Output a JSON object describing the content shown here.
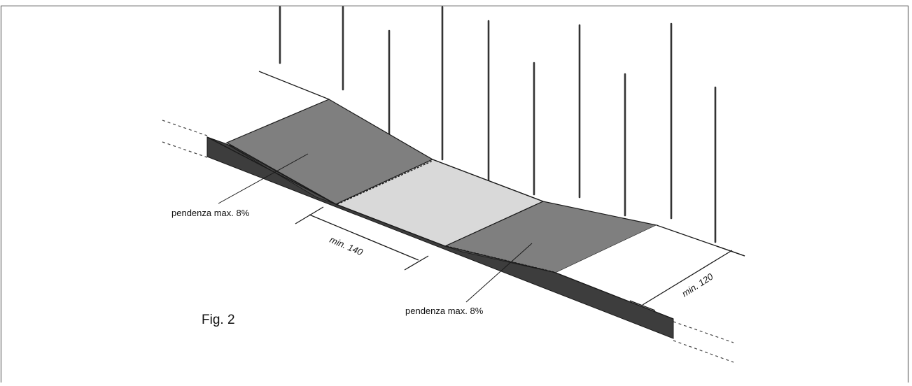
{
  "figure": {
    "caption": "Fig. 2",
    "labels": {
      "slope_left": "pendenza max. 8%",
      "slope_right": "pendenza max. 8%",
      "min_140": "min. 140",
      "min_120": "min. 120"
    }
  },
  "colors": {
    "ramp_fill": "#7f7f7f",
    "landing_fill": "#d9d9d9",
    "curb_side_fill": "#3d3d3d",
    "line": "#1a1a1a",
    "background": "#ffffff"
  }
}
